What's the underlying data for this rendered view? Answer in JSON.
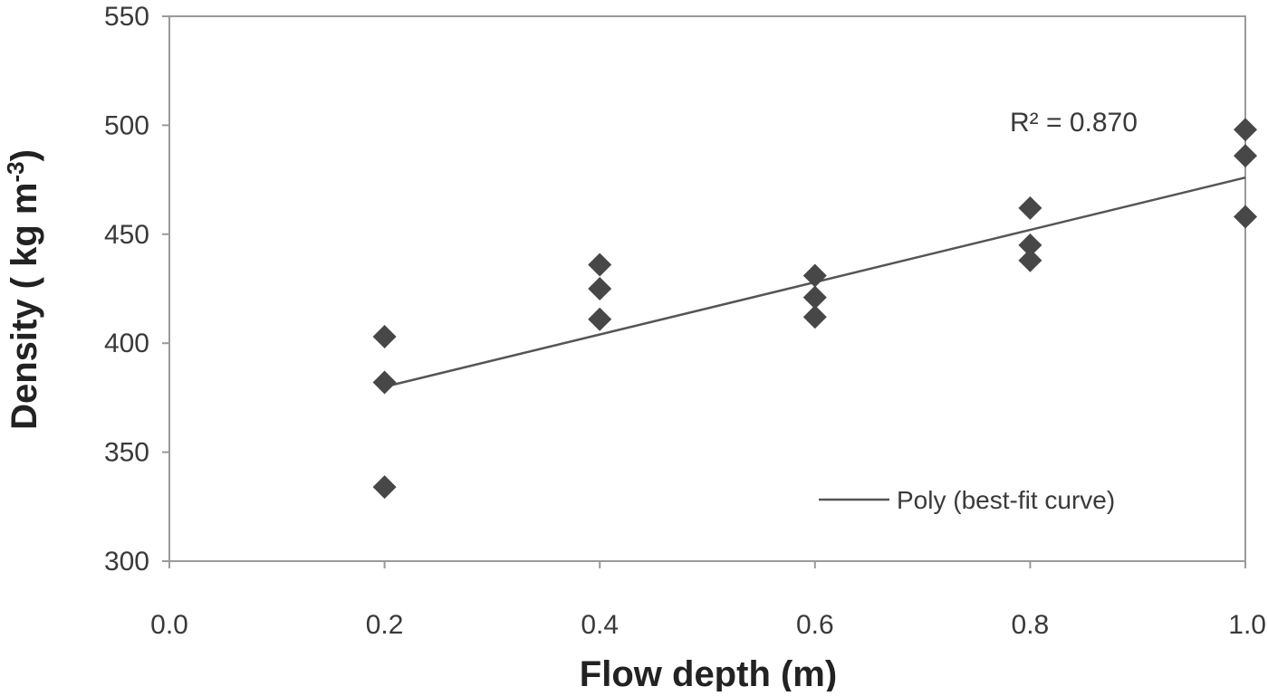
{
  "chart_data": {
    "type": "scatter",
    "title": "",
    "xlabel": "Flow depth (m)",
    "ylabel_main": "Density ( kg m",
    "ylabel_sup": "-3",
    "ylabel_end": ")",
    "xlim": [
      0.0,
      1.0
    ],
    "ylim": [
      300,
      550
    ],
    "x_ticks": [
      0.0,
      0.2,
      0.4,
      0.6,
      0.8,
      1.0
    ],
    "x_tick_labels": [
      "0.0",
      "0.2",
      "0.4",
      "0.6",
      "0.8",
      "1.0"
    ],
    "y_ticks": [
      300,
      350,
      400,
      450,
      500,
      550
    ],
    "y_tick_labels": [
      "300",
      "350",
      "400",
      "450",
      "500",
      "550"
    ],
    "grid": false,
    "marker": "diamond",
    "marker_color": "#474747",
    "line_color": "#555555",
    "axis_color": "#9a9a9a",
    "points": [
      {
        "x": 0.2,
        "y": 403
      },
      {
        "x": 0.2,
        "y": 382
      },
      {
        "x": 0.2,
        "y": 334
      },
      {
        "x": 0.4,
        "y": 436
      },
      {
        "x": 0.4,
        "y": 425
      },
      {
        "x": 0.4,
        "y": 411
      },
      {
        "x": 0.6,
        "y": 431
      },
      {
        "x": 0.6,
        "y": 421
      },
      {
        "x": 0.6,
        "y": 412
      },
      {
        "x": 0.8,
        "y": 462
      },
      {
        "x": 0.8,
        "y": 445
      },
      {
        "x": 0.8,
        "y": 438
      },
      {
        "x": 1.0,
        "y": 498
      },
      {
        "x": 1.0,
        "y": 486
      },
      {
        "x": 1.0,
        "y": 458
      }
    ],
    "fit_line": {
      "name": "Poly  (best-fit curve)",
      "x": [
        0.2,
        1.0
      ],
      "y": [
        380,
        476
      ]
    },
    "annotation_text": "R² = 0.870",
    "legend_position": "bottom-right"
  }
}
